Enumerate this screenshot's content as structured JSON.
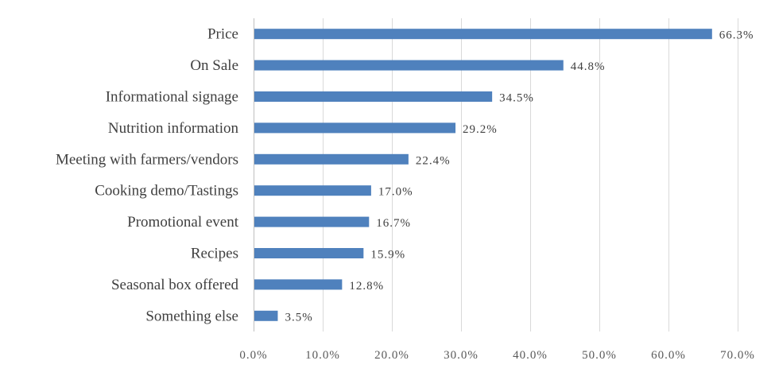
{
  "chart_data": {
    "type": "bar",
    "orientation": "horizontal",
    "categories": [
      "Price",
      "On Sale",
      "Informational signage",
      "Nutrition information",
      "Meeting with farmers/vendors",
      "Cooking demo/Tastings",
      "Promotional event",
      "Recipes",
      "Seasonal box offered",
      "Something else"
    ],
    "values": [
      66.3,
      44.8,
      34.5,
      29.2,
      22.4,
      17.0,
      16.7,
      15.9,
      12.8,
      3.5
    ],
    "value_labels": [
      "66.3%",
      "44.8%",
      "34.5%",
      "29.2%",
      "22.4%",
      "17.0%",
      "16.7%",
      "15.9%",
      "12.8%",
      "3.5%"
    ],
    "x_ticks": [
      "0.0%",
      "10.0%",
      "20.0%",
      "30.0%",
      "40.0%",
      "50.0%",
      "60.0%",
      "70.0%"
    ],
    "xlim": [
      0,
      70
    ],
    "title": "",
    "xlabel": "",
    "ylabel": "",
    "grid": true,
    "legend": "none",
    "colors": {
      "bar": "#4F81BD",
      "grid": "#D9D9D9",
      "axis": "#BFBFBF",
      "text": "#404040"
    }
  }
}
